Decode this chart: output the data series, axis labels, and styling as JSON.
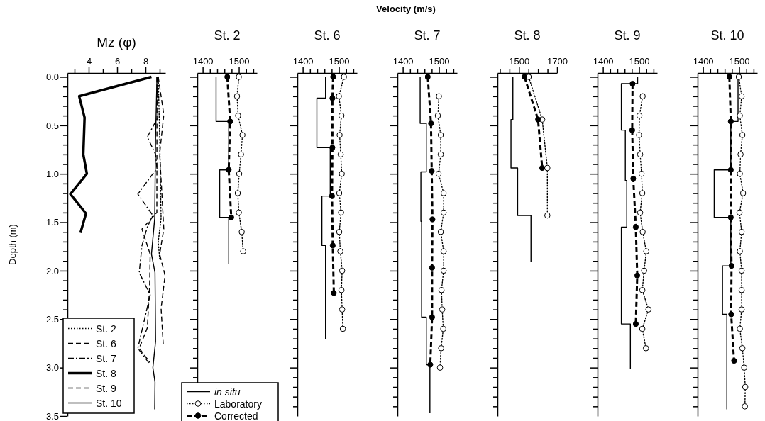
{
  "chart_data": [
    {
      "type": "line",
      "title": "Mz (φ)",
      "ylabel": "Depth (m)",
      "xlim": [
        2.5,
        9.4
      ],
      "ylim": [
        3.5,
        -0.04
      ],
      "xticks": [
        {
          "value": 3,
          "label": null
        },
        4,
        {
          "value": 5,
          "label": null
        },
        6,
        {
          "value": 7,
          "label": null
        },
        8,
        {
          "value": 9,
          "label": null
        }
      ],
      "yticks": [
        {
          "value": 0,
          "label": "0.0"
        },
        {
          "value": 0.1,
          "label": null
        },
        {
          "value": 0.2,
          "label": null
        },
        {
          "value": 0.3,
          "label": null
        },
        {
          "value": 0.4,
          "label": null
        },
        {
          "value": 0.5,
          "label": "0.5"
        },
        {
          "value": 0.6,
          "label": null
        },
        {
          "value": 0.7,
          "label": null
        },
        {
          "value": 0.8,
          "label": null
        },
        {
          "value": 0.9,
          "label": null
        },
        {
          "value": 1,
          "label": "1.0"
        },
        {
          "value": 1.1,
          "label": null
        },
        {
          "value": 1.2,
          "label": null
        },
        {
          "value": 1.3,
          "label": null
        },
        {
          "value": 1.4,
          "label": null
        },
        {
          "value": 1.5,
          "label": "1.5"
        },
        {
          "value": 1.6,
          "label": null
        },
        {
          "value": 1.7,
          "label": null
        },
        {
          "value": 1.8,
          "label": null
        },
        {
          "value": 1.9,
          "label": null
        },
        {
          "value": 2,
          "label": "2.0"
        },
        {
          "value": 2.1,
          "label": null
        },
        {
          "value": 2.2,
          "label": null
        },
        {
          "value": 2.3,
          "label": null
        },
        {
          "value": 2.4,
          "label": null
        },
        {
          "value": 2.5,
          "label": "2.5"
        },
        {
          "value": 3,
          "label": "3.0"
        },
        {
          "value": 3.5,
          "label": "3.5"
        }
      ],
      "legend": "bottom left",
      "series": [
        {
          "name": "St. 2",
          "color": "#000000",
          "line_style": "dotted",
          "x": [
            8.9,
            9.0,
            9.1,
            8.9,
            9.0
          ],
          "values": [
            0,
            0.62,
            1.46,
            1.7,
            1.88
          ]
        },
        {
          "name": "St. 6",
          "color": "#000000",
          "line_style": "dashed",
          "x": [
            8.9,
            9.29,
            9.0,
            9.29,
            9.0,
            9.38,
            9.1,
            9.25
          ],
          "values": [
            0,
            0.39,
            0.79,
            1.57,
            1.83,
            2.05,
            2.39,
            2.76
          ]
        },
        {
          "name": "St. 7",
          "color": "#000000",
          "line_style": "dashdot",
          "x": [
            8.81,
            8.87,
            8.13,
            8.71,
            8.81,
            8.52,
            7.46,
            8.52,
            8.13,
            7.75,
            7.56,
            8.33,
            7.46,
            8.23
          ],
          "values": [
            0,
            0.42,
            0.62,
            0.8,
            0.95,
            1.0,
            1.21,
            1.43,
            1.55,
            1.74,
            2.02,
            2.25,
            2.8,
            2.95
          ]
        },
        {
          "name": "St. 8",
          "color": "#000000",
          "line_style": "solid",
          "x": [
            8.42,
            3.33,
            3.71,
            3.62,
            3.87,
            2.71,
            3.81,
            3.42
          ],
          "values": [
            0,
            0.2,
            0.42,
            0.8,
            1.0,
            1.21,
            1.41,
            1.61
          ]
        },
        {
          "name": "St. 9",
          "color": "#000000",
          "line_style": "dashed",
          "x": [
            8.81,
            8.8,
            7.75,
            8.33,
            8.29,
            8.13,
            7.56,
            8.33
          ],
          "values": [
            0,
            1.4,
            1.57,
            1.83,
            2.16,
            2.59,
            2.8,
            2.95
          ]
        },
        {
          "name": "St. 10",
          "color": "#000000",
          "line_style": "solid",
          "x": [
            8.81,
            8.71,
            8.65,
            8.42,
            8.67,
            8.71,
            8.52,
            8.67,
            8.65
          ],
          "values": [
            0,
            0.62,
            1.46,
            1.83,
            2.02,
            2.73,
            3.0,
            3.15,
            3.43
          ]
        }
      ]
    },
    {
      "type": "line",
      "title": "St. 2",
      "xlim": [
        1385,
        1550
      ],
      "ylim": [
        3.5,
        -0.04
      ],
      "tick_labels": "x",
      "xticks": [
        1400,
        {
          "value": 1420,
          "label": null
        },
        {
          "value": 1440,
          "label": null
        },
        {
          "value": 1460,
          "label": null
        },
        {
          "value": 1480,
          "label": null
        },
        1500,
        {
          "value": 1520,
          "label": null
        },
        {
          "value": 1540,
          "label": null
        }
      ],
      "yticks": [
        {
          "value": 0,
          "label": null
        },
        {
          "value": 0.1,
          "label": null
        },
        {
          "value": 0.2,
          "label": null
        },
        {
          "value": 0.3,
          "label": null
        },
        {
          "value": 0.4,
          "label": null
        },
        {
          "value": 0.5,
          "label": null
        },
        {
          "value": 0.6,
          "label": null
        },
        {
          "value": 0.7,
          "label": null
        },
        {
          "value": 0.8,
          "label": null
        },
        {
          "value": 0.9,
          "label": null
        },
        {
          "value": 1,
          "label": null
        },
        {
          "value": 1.1,
          "label": null
        },
        {
          "value": 1.2,
          "label": null
        },
        {
          "value": 1.3,
          "label": null
        },
        {
          "value": 1.4,
          "label": null
        },
        {
          "value": 1.5,
          "label": null
        },
        {
          "value": 1.6,
          "label": null
        },
        {
          "value": 1.7,
          "label": null
        },
        {
          "value": 1.8,
          "label": null
        },
        {
          "value": 1.9,
          "label": null
        },
        {
          "value": 2,
          "label": null
        },
        {
          "value": 2.1,
          "label": null
        },
        {
          "value": 2.2,
          "label": null
        },
        {
          "value": 2.3,
          "label": null
        },
        {
          "value": 2.4,
          "label": null
        },
        {
          "value": 2.5,
          "label": null
        },
        {
          "value": 2.6,
          "label": null
        },
        {
          "value": 2.7,
          "label": null
        },
        {
          "value": 2.8,
          "label": null
        },
        {
          "value": 2.9,
          "label": null
        },
        {
          "value": 3,
          "label": null
        },
        {
          "value": 3.1,
          "label": null
        },
        {
          "value": 3.2,
          "label": null
        },
        {
          "value": 3.3,
          "label": null
        },
        {
          "value": 3.4,
          "label": null
        }
      ],
      "legend": "bottom",
      "series": [
        {
          "name": "in situ",
          "color": "#000000",
          "line_style": "solid",
          "x": [
            1437,
            1437,
            1472,
            1472,
            1447,
            1447,
            1472,
            1472
          ],
          "values": [
            0,
            0.46,
            0.46,
            0.96,
            0.96,
            1.45,
            1.45,
            1.93
          ]
        },
        {
          "name": "Laboratory",
          "color": "#000000",
          "line_style": "dotted",
          "marker": "circle",
          "x": [
            1500,
            1495,
            1498,
            1510,
            1506,
            1501,
            1497,
            1500,
            1508,
            1512
          ],
          "values": [
            0,
            0.2,
            0.4,
            0.6,
            0.8,
            1.0,
            1.2,
            1.4,
            1.6,
            1.8
          ]
        },
        {
          "name": "Corrected",
          "color": "#000000",
          "line_style": "dashed",
          "marker": "circle",
          "x": [
            1468,
            1476,
            1472,
            1479
          ],
          "values": [
            0,
            0.46,
            0.96,
            1.45
          ]
        }
      ]
    },
    {
      "type": "line",
      "title": "St. 6",
      "xlim": [
        1385,
        1550
      ],
      "ylim": [
        3.5,
        -0.04
      ],
      "tick_labels": "x",
      "xticks": [
        1400,
        {
          "value": 1420,
          "label": null
        },
        {
          "value": 1440,
          "label": null
        },
        {
          "value": 1460,
          "label": null
        },
        {
          "value": 1480,
          "label": null
        },
        1500,
        {
          "value": 1520,
          "label": null
        },
        {
          "value": 1540,
          "label": null
        }
      ],
      "yticks": [
        {
          "value": 0,
          "label": null
        },
        {
          "value": 0.1,
          "label": null
        },
        {
          "value": 0.2,
          "label": null
        },
        {
          "value": 0.3,
          "label": null
        },
        {
          "value": 0.4,
          "label": null
        },
        {
          "value": 0.5,
          "label": null
        },
        {
          "value": 0.6,
          "label": null
        },
        {
          "value": 0.7,
          "label": null
        },
        {
          "value": 0.8,
          "label": null
        },
        {
          "value": 0.9,
          "label": null
        },
        {
          "value": 1,
          "label": null
        },
        {
          "value": 1.1,
          "label": null
        },
        {
          "value": 1.2,
          "label": null
        },
        {
          "value": 1.3,
          "label": null
        },
        {
          "value": 1.4,
          "label": null
        },
        {
          "value": 1.5,
          "label": null
        },
        {
          "value": 1.6,
          "label": null
        },
        {
          "value": 1.7,
          "label": null
        },
        {
          "value": 1.8,
          "label": null
        },
        {
          "value": 1.9,
          "label": null
        },
        {
          "value": 2,
          "label": null
        },
        {
          "value": 2.1,
          "label": null
        },
        {
          "value": 2.2,
          "label": null
        },
        {
          "value": 2.3,
          "label": null
        },
        {
          "value": 2.4,
          "label": null
        },
        {
          "value": 2.5,
          "label": null
        },
        {
          "value": 2.6,
          "label": null
        },
        {
          "value": 2.7,
          "label": null
        },
        {
          "value": 2.8,
          "label": null
        },
        {
          "value": 2.9,
          "label": null
        },
        {
          "value": 3,
          "label": null
        },
        {
          "value": 3.1,
          "label": null
        },
        {
          "value": 3.2,
          "label": null
        },
        {
          "value": 3.3,
          "label": null
        },
        {
          "value": 3.4,
          "label": null
        }
      ],
      "series": [
        {
          "color": "#000000",
          "line_style": "solid",
          "x": [
            1463,
            1463,
            1439,
            1439,
            1476,
            1476,
            1453,
            1453,
            1463,
            1463
          ],
          "values": [
            0,
            0.22,
            0.22,
            0.73,
            0.73,
            1.23,
            1.23,
            1.74,
            1.74,
            2.71
          ]
        },
        {
          "color": "#000000",
          "line_style": "dotted",
          "marker": "circle",
          "x": [
            1514,
            1500,
            1507,
            1502,
            1505,
            1508,
            1501,
            1506,
            1501,
            1504,
            1509,
            1507,
            1509,
            1511
          ],
          "values": [
            0,
            0.2,
            0.4,
            0.6,
            0.8,
            1.0,
            1.2,
            1.4,
            1.6,
            1.8,
            2.0,
            2.2,
            2.4,
            2.6
          ]
        },
        {
          "color": "#000000",
          "line_style": "dashed",
          "marker": "circle",
          "x": [
            1484,
            1482,
            1482,
            1481,
            1483,
            1486
          ],
          "values": [
            0,
            0.22,
            0.73,
            1.23,
            1.74,
            2.23
          ]
        }
      ]
    },
    {
      "type": "line",
      "title": "St. 7",
      "xlabel": "Velocity (m/s)",
      "xlim": [
        1385,
        1550
      ],
      "ylim": [
        3.5,
        -0.04
      ],
      "tick_labels": "x",
      "xticks": [
        1400,
        {
          "value": 1420,
          "label": null
        },
        {
          "value": 1440,
          "label": null
        },
        {
          "value": 1460,
          "label": null
        },
        {
          "value": 1480,
          "label": null
        },
        1500,
        {
          "value": 1520,
          "label": null
        },
        {
          "value": 1540,
          "label": null
        }
      ],
      "yticks": [
        {
          "value": 0,
          "label": null
        },
        {
          "value": 0.1,
          "label": null
        },
        {
          "value": 0.2,
          "label": null
        },
        {
          "value": 0.3,
          "label": null
        },
        {
          "value": 0.4,
          "label": null
        },
        {
          "value": 0.5,
          "label": null
        },
        {
          "value": 0.6,
          "label": null
        },
        {
          "value": 0.7,
          "label": null
        },
        {
          "value": 0.8,
          "label": null
        },
        {
          "value": 0.9,
          "label": null
        },
        {
          "value": 1,
          "label": null
        },
        {
          "value": 1.1,
          "label": null
        },
        {
          "value": 1.2,
          "label": null
        },
        {
          "value": 1.3,
          "label": null
        },
        {
          "value": 1.4,
          "label": null
        },
        {
          "value": 1.5,
          "label": null
        },
        {
          "value": 1.6,
          "label": null
        },
        {
          "value": 1.7,
          "label": null
        },
        {
          "value": 1.8,
          "label": null
        },
        {
          "value": 1.9,
          "label": null
        },
        {
          "value": 2,
          "label": null
        },
        {
          "value": 2.1,
          "label": null
        },
        {
          "value": 2.2,
          "label": null
        },
        {
          "value": 2.3,
          "label": null
        },
        {
          "value": 2.4,
          "label": null
        },
        {
          "value": 2.5,
          "label": null
        },
        {
          "value": 2.6,
          "label": null
        },
        {
          "value": 2.7,
          "label": null
        },
        {
          "value": 2.8,
          "label": null
        },
        {
          "value": 2.9,
          "label": null
        },
        {
          "value": 3,
          "label": null
        },
        {
          "value": 3.1,
          "label": null
        },
        {
          "value": 3.2,
          "label": null
        },
        {
          "value": 3.3,
          "label": null
        },
        {
          "value": 3.4,
          "label": null
        }
      ],
      "series": [
        {
          "color": "#000000",
          "line_style": "solid",
          "x": [
            1448,
            1448,
            1465,
            1465,
            1450,
            1450,
            1452,
            1452,
            1465,
            1465,
            1475,
            1475
          ],
          "values": [
            0,
            0.48,
            0.48,
            0.98,
            0.98,
            1.49,
            1.49,
            2.48,
            2.48,
            2.97,
            2.97,
            3.47
          ]
        },
        {
          "color": "#000000",
          "line_style": "dotted",
          "marker": "circle",
          "x": [
            1500,
            1497,
            1505,
            1505,
            1499,
            1513,
            1513,
            1505,
            1513,
            1513,
            1507,
            1509,
            1512,
            1506,
            1503
          ],
          "values": [
            0.2,
            0.4,
            0.6,
            0.8,
            1.0,
            1.2,
            1.4,
            1.6,
            1.8,
            2.0,
            2.2,
            2.4,
            2.6,
            2.8,
            3.0
          ]
        },
        {
          "color": "#000000",
          "line_style": "dashed",
          "marker": "circle",
          "x": [
            1469,
            1478,
            1480,
            1482,
            1481,
            1481,
            1476
          ],
          "values": [
            0,
            0.48,
            0.97,
            1.47,
            1.97,
            2.48,
            2.97
          ]
        }
      ]
    },
    {
      "type": "line",
      "title": "St. 8",
      "xlim": [
        1387,
        1700
      ],
      "ylim": [
        3.5,
        -0.04
      ],
      "tick_labels": "x",
      "xticks": [
        {
          "value": 1400,
          "label": null
        },
        {
          "value": 1450,
          "label": null
        },
        1500,
        {
          "value": 1550,
          "label": null
        },
        {
          "value": 1600,
          "label": null
        },
        {
          "value": 1650,
          "label": null
        },
        1700
      ],
      "yticks": [
        {
          "value": 0,
          "label": null
        },
        {
          "value": 0.1,
          "label": null
        },
        {
          "value": 0.2,
          "label": null
        },
        {
          "value": 0.3,
          "label": null
        },
        {
          "value": 0.4,
          "label": null
        },
        {
          "value": 0.5,
          "label": null
        },
        {
          "value": 0.6,
          "label": null
        },
        {
          "value": 0.7,
          "label": null
        },
        {
          "value": 0.8,
          "label": null
        },
        {
          "value": 0.9,
          "label": null
        },
        {
          "value": 1,
          "label": null
        },
        {
          "value": 1.1,
          "label": null
        },
        {
          "value": 1.2,
          "label": null
        },
        {
          "value": 1.3,
          "label": null
        },
        {
          "value": 1.4,
          "label": null
        },
        {
          "value": 1.5,
          "label": null
        },
        {
          "value": 1.6,
          "label": null
        },
        {
          "value": 1.7,
          "label": null
        },
        {
          "value": 1.8,
          "label": null
        },
        {
          "value": 1.9,
          "label": null
        },
        {
          "value": 2,
          "label": null
        },
        {
          "value": 2.1,
          "label": null
        },
        {
          "value": 2.2,
          "label": null
        },
        {
          "value": 2.3,
          "label": null
        },
        {
          "value": 2.4,
          "label": null
        },
        {
          "value": 2.5,
          "label": null
        },
        {
          "value": 2.6,
          "label": null
        },
        {
          "value": 2.7,
          "label": null
        },
        {
          "value": 2.8,
          "label": null
        },
        {
          "value": 2.9,
          "label": null
        },
        {
          "value": 3,
          "label": null
        },
        {
          "value": 3.1,
          "label": null
        },
        {
          "value": 3.2,
          "label": null
        },
        {
          "value": 3.3,
          "label": null
        },
        {
          "value": 3.4,
          "label": null
        }
      ],
      "series": [
        {
          "color": "#000000",
          "line_style": "solid",
          "x": [
            1468,
            1468,
            1458,
            1458,
            1493,
            1493,
            1563,
            1563
          ],
          "values": [
            0,
            0.44,
            0.44,
            0.94,
            0.94,
            1.43,
            1.43,
            1.91
          ]
        },
        {
          "color": "#000000",
          "line_style": "dotted",
          "marker": "circle",
          "x": [
            1551,
            1622,
            1649,
            1649
          ],
          "values": [
            0,
            0.44,
            0.94,
            1.43
          ]
        },
        {
          "color": "#000000",
          "line_style": "dashed",
          "marker": "circle",
          "x": [
            1529,
            1600,
            1622
          ],
          "values": [
            0,
            0.44,
            0.94
          ]
        }
      ]
    },
    {
      "type": "line",
      "title": "St. 9",
      "xlim": [
        1385,
        1550
      ],
      "ylim": [
        3.5,
        -0.04
      ],
      "tick_labels": "x",
      "xticks": [
        1400,
        {
          "value": 1420,
          "label": null
        },
        {
          "value": 1440,
          "label": null
        },
        {
          "value": 1460,
          "label": null
        },
        {
          "value": 1480,
          "label": null
        },
        1500,
        {
          "value": 1520,
          "label": null
        },
        {
          "value": 1540,
          "label": null
        }
      ],
      "yticks": [
        {
          "value": 0,
          "label": null
        },
        {
          "value": 0.1,
          "label": null
        },
        {
          "value": 0.2,
          "label": null
        },
        {
          "value": 0.3,
          "label": null
        },
        {
          "value": 0.4,
          "label": null
        },
        {
          "value": 0.5,
          "label": null
        },
        {
          "value": 0.6,
          "label": null
        },
        {
          "value": 0.7,
          "label": null
        },
        {
          "value": 0.8,
          "label": null
        },
        {
          "value": 0.9,
          "label": null
        },
        {
          "value": 1,
          "label": null
        },
        {
          "value": 1.1,
          "label": null
        },
        {
          "value": 1.2,
          "label": null
        },
        {
          "value": 1.3,
          "label": null
        },
        {
          "value": 1.4,
          "label": null
        },
        {
          "value": 1.5,
          "label": null
        },
        {
          "value": 1.6,
          "label": null
        },
        {
          "value": 1.7,
          "label": null
        },
        {
          "value": 1.8,
          "label": null
        },
        {
          "value": 1.9,
          "label": null
        },
        {
          "value": 2,
          "label": null
        },
        {
          "value": 2.1,
          "label": null
        },
        {
          "value": 2.2,
          "label": null
        },
        {
          "value": 2.3,
          "label": null
        },
        {
          "value": 2.4,
          "label": null
        },
        {
          "value": 2.5,
          "label": null
        },
        {
          "value": 2.6,
          "label": null
        },
        {
          "value": 2.7,
          "label": null
        },
        {
          "value": 2.8,
          "label": null
        },
        {
          "value": 2.9,
          "label": null
        },
        {
          "value": 3,
          "label": null
        },
        {
          "value": 3.1,
          "label": null
        },
        {
          "value": 3.2,
          "label": null
        },
        {
          "value": 3.3,
          "label": null
        },
        {
          "value": 3.4,
          "label": null
        }
      ],
      "series": [
        {
          "color": "#000000",
          "line_style": "solid",
          "x": [
            1496,
            1496,
            1451,
            1451,
            1462,
            1462,
            1466,
            1466,
            1451,
            1451,
            1476,
            1476
          ],
          "values": [
            0,
            0.07,
            0.07,
            0.55,
            0.55,
            1.07,
            1.07,
            1.55,
            1.55,
            2.55,
            2.55,
            3.01
          ]
        },
        {
          "color": "#000000",
          "line_style": "dotted",
          "marker": "circle",
          "x": [
            1510,
            1501,
            1500,
            1503,
            1507,
            1509,
            1503,
            1510,
            1520,
            1514,
            1509,
            1526,
            1509,
            1519
          ],
          "values": [
            0.2,
            0.4,
            0.6,
            0.8,
            1.0,
            1.2,
            1.4,
            1.6,
            1.8,
            2.0,
            2.2,
            2.4,
            2.6,
            2.8
          ]
        },
        {
          "color": "#000000",
          "line_style": "dashed",
          "marker": "circle",
          "x": [
            1482,
            1481,
            1484,
            1491,
            1495,
            1491
          ],
          "values": [
            0.07,
            0.55,
            1.05,
            1.55,
            2.05,
            2.55
          ]
        }
      ]
    },
    {
      "type": "line",
      "title": "St. 10",
      "xlim": [
        1385,
        1550
      ],
      "ylim": [
        3.5,
        -0.04
      ],
      "tick_labels": "x",
      "xticks": [
        1400,
        {
          "value": 1420,
          "label": null
        },
        {
          "value": 1440,
          "label": null
        },
        {
          "value": 1460,
          "label": null
        },
        {
          "value": 1480,
          "label": null
        },
        1500,
        {
          "value": 1520,
          "label": null
        },
        {
          "value": 1540,
          "label": null
        }
      ],
      "yticks": [
        {
          "value": 0,
          "label": null
        },
        {
          "value": 0.1,
          "label": null
        },
        {
          "value": 0.2,
          "label": null
        },
        {
          "value": 0.3,
          "label": null
        },
        {
          "value": 0.4,
          "label": null
        },
        {
          "value": 0.5,
          "label": null
        },
        {
          "value": 0.6,
          "label": null
        },
        {
          "value": 0.7,
          "label": null
        },
        {
          "value": 0.8,
          "label": null
        },
        {
          "value": 0.9,
          "label": null
        },
        {
          "value": 1,
          "label": null
        },
        {
          "value": 1.1,
          "label": null
        },
        {
          "value": 1.2,
          "label": null
        },
        {
          "value": 1.3,
          "label": null
        },
        {
          "value": 1.4,
          "label": null
        },
        {
          "value": 1.5,
          "label": null
        },
        {
          "value": 1.6,
          "label": null
        },
        {
          "value": 1.7,
          "label": null
        },
        {
          "value": 1.8,
          "label": null
        },
        {
          "value": 1.9,
          "label": null
        },
        {
          "value": 2,
          "label": null
        },
        {
          "value": 2.1,
          "label": null
        },
        {
          "value": 2.2,
          "label": null
        },
        {
          "value": 2.3,
          "label": null
        },
        {
          "value": 2.4,
          "label": null
        },
        {
          "value": 2.5,
          "label": null
        },
        {
          "value": 2.6,
          "label": null
        },
        {
          "value": 2.7,
          "label": null
        },
        {
          "value": 2.8,
          "label": null
        },
        {
          "value": 2.9,
          "label": null
        },
        {
          "value": 3,
          "label": null
        },
        {
          "value": 3.1,
          "label": null
        },
        {
          "value": 3.2,
          "label": null
        },
        {
          "value": 3.3,
          "label": null
        },
        {
          "value": 3.4,
          "label": null
        }
      ],
      "series": [
        {
          "color": "#000000",
          "line_style": "solid",
          "x": [
            1497,
            1497,
            1477,
            1477,
            1431,
            1431,
            1477,
            1477,
            1454,
            1454,
            1466,
            1466
          ],
          "values": [
            0,
            0.46,
            0.46,
            0.96,
            0.96,
            1.45,
            1.45,
            1.95,
            1.95,
            2.45,
            2.45,
            3.43
          ]
        },
        {
          "color": "#000000",
          "line_style": "dotted",
          "marker": "circle",
          "x": [
            1499,
            1507,
            1502,
            1509,
            1504,
            1502,
            1511,
            1501,
            1507,
            1502,
            1507,
            1507,
            1507,
            1502,
            1509,
            1514,
            1517,
            1516
          ],
          "values": [
            0,
            0.2,
            0.4,
            0.6,
            0.8,
            1.0,
            1.2,
            1.4,
            1.6,
            1.8,
            2.0,
            2.2,
            2.4,
            2.6,
            2.8,
            3.0,
            3.2,
            3.4
          ]
        },
        {
          "color": "#000000",
          "line_style": "dashed",
          "marker": "circle",
          "x": [
            1473,
            1477,
            1477,
            1477,
            1479,
            1478,
            1486
          ],
          "values": [
            0,
            0.46,
            0.96,
            1.45,
            1.95,
            2.45,
            2.93
          ]
        }
      ]
    }
  ]
}
